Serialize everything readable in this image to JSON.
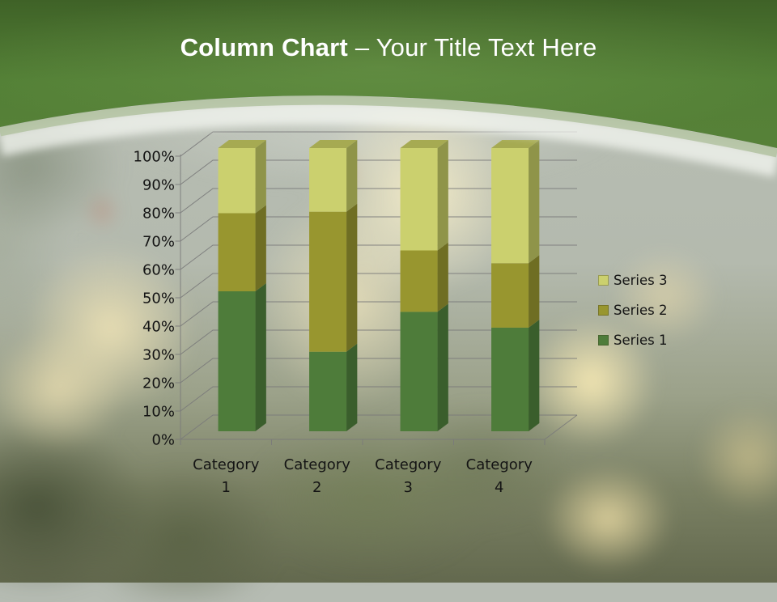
{
  "header": {
    "title_bold": "Column Chart",
    "title_regular": "– Your Title Text Here"
  },
  "chart_data": {
    "type": "bar",
    "subtype": "3d-100%-stacked-column",
    "title": "",
    "categories": [
      "Category 1",
      "Category 2",
      "Category 3",
      "Category 4"
    ],
    "series": [
      {
        "name": "Series 1",
        "values": [
          4.3,
          2.5,
          3.5,
          4.5
        ],
        "color": "#4e7c3a",
        "side_color": "#3a5e2c",
        "top_color": "#5d8c46"
      },
      {
        "name": "Series 2",
        "values": [
          2.4,
          4.4,
          1.8,
          2.8
        ],
        "color": "#98962f",
        "side_color": "#6f6e23",
        "top_color": "#a8a63e"
      },
      {
        "name": "Series 3",
        "values": [
          2.0,
          2.0,
          3.0,
          5.0
        ],
        "color": "#cbd06e",
        "side_color": "#8f9449",
        "top_color": "#a6aa52"
      }
    ],
    "y_axis": {
      "min": 0,
      "max": 100,
      "step": 10,
      "tick_labels": [
        "0%",
        "10%",
        "20%",
        "30%",
        "40%",
        "50%",
        "60%",
        "70%",
        "80%",
        "90%",
        "100%"
      ]
    },
    "legend": {
      "position": "right",
      "entries_top_to_bottom": [
        "Series 3",
        "Series 2",
        "Series 1"
      ]
    },
    "gridlines": true
  },
  "colors": {
    "header_green_top": "#3f6227",
    "header_green_mid": "#55803a",
    "header_green_bottom": "#578138",
    "header_sage_band": "#b5c4a4",
    "gridline": "#7a7a7a",
    "chart_text": "#141414",
    "title_text": "#ffffff"
  }
}
